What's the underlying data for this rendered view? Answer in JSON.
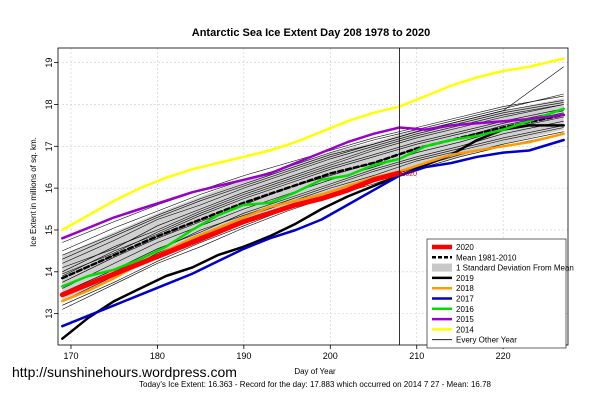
{
  "chart_data": {
    "type": "line",
    "title": "Antarctic Sea Ice Extent Day 208 1978 to 2020",
    "xlabel": "Day of Year",
    "ylabel": "Ice Extent in millions of sq. km.",
    "xlim": [
      168.5,
      227.5
    ],
    "ylim": [
      12.25,
      19.35
    ],
    "xticks": [
      170,
      180,
      190,
      200,
      210,
      220
    ],
    "yticks": [
      13,
      14,
      15,
      16,
      17,
      18,
      19
    ],
    "grid": true,
    "current_day": 208,
    "current_day_value": 16.363,
    "legend_position": "bottom-right",
    "legend": [
      {
        "label": "2020",
        "color": "#ff0000",
        "style": "thick"
      },
      {
        "label": "Mean 1981-2010",
        "color": "#000000",
        "style": "dashed"
      },
      {
        "label": "1 Standard Deviation From Mean",
        "color": "#c8c8c8",
        "style": "band"
      },
      {
        "label": "2019",
        "color": "#000000",
        "style": "solid"
      },
      {
        "label": "2018",
        "color": "#ff9900",
        "style": "solid"
      },
      {
        "label": "2017",
        "color": "#0000cc",
        "style": "solid"
      },
      {
        "label": "2016",
        "color": "#00dd00",
        "style": "solid"
      },
      {
        "label": "2015",
        "color": "#9900cc",
        "style": "solid"
      },
      {
        "label": "2014",
        "color": "#ffff00",
        "style": "solid"
      },
      {
        "label": "Every Other Year",
        "color": "#000000",
        "style": "thin"
      }
    ],
    "std_band": {
      "x": [
        169,
        175,
        180,
        185,
        190,
        195,
        200,
        205,
        210,
        215,
        220,
        227
      ],
      "upper": [
        14.4,
        14.95,
        15.4,
        15.8,
        16.2,
        16.5,
        16.85,
        17.1,
        17.4,
        17.6,
        17.85,
        18.15
      ],
      "lower": [
        13.3,
        13.85,
        14.3,
        14.7,
        15.15,
        15.5,
        15.85,
        16.15,
        16.5,
        16.75,
        17.05,
        17.4
      ]
    },
    "series": [
      {
        "name": "2020",
        "color": "#ff0000",
        "width": 5,
        "dash": "",
        "x": [
          169,
          172,
          175,
          178,
          181,
          184,
          187,
          190,
          193,
          196,
          199,
          202,
          205,
          208
        ],
        "y": [
          13.45,
          13.7,
          13.95,
          14.2,
          14.45,
          14.7,
          14.95,
          15.2,
          15.4,
          15.6,
          15.75,
          15.95,
          16.2,
          16.36
        ]
      },
      {
        "name": "Mean 1981-2010",
        "color": "#000000",
        "width": 2.5,
        "dash": "5,3",
        "x": [
          169,
          175,
          180,
          185,
          190,
          195,
          200,
          205,
          210,
          215,
          220,
          227
        ],
        "y": [
          13.85,
          14.4,
          14.85,
          15.25,
          15.65,
          16.0,
          16.35,
          16.6,
          16.95,
          17.2,
          17.45,
          17.75
        ]
      },
      {
        "name": "2019",
        "color": "#000000",
        "width": 2.5,
        "dash": "",
        "x": [
          169,
          172,
          175,
          178,
          181,
          184,
          187,
          190,
          193,
          196,
          199,
          202,
          205,
          208,
          211,
          214,
          217,
          220,
          223,
          227
        ],
        "y": [
          12.4,
          12.9,
          13.3,
          13.6,
          13.9,
          14.1,
          14.4,
          14.6,
          14.85,
          15.15,
          15.5,
          15.8,
          16.05,
          16.3,
          16.55,
          16.8,
          17.15,
          17.4,
          17.5,
          17.5
        ]
      },
      {
        "name": "2018",
        "color": "#ff9900",
        "width": 2.5,
        "dash": "",
        "x": [
          169,
          172,
          175,
          178,
          181,
          184,
          187,
          190,
          193,
          196,
          199,
          202,
          205,
          208,
          211,
          214,
          217,
          220,
          223,
          227
        ],
        "y": [
          13.3,
          13.55,
          13.85,
          14.2,
          14.5,
          14.8,
          15.05,
          15.3,
          15.55,
          15.7,
          15.85,
          16.05,
          16.25,
          16.4,
          16.6,
          16.8,
          16.9,
          17.0,
          17.1,
          17.3
        ]
      },
      {
        "name": "2017",
        "color": "#0000cc",
        "width": 2.5,
        "dash": "",
        "x": [
          169,
          172,
          175,
          178,
          181,
          184,
          187,
          190,
          193,
          196,
          199,
          202,
          205,
          208,
          211,
          214,
          217,
          220,
          223,
          227
        ],
        "y": [
          12.7,
          12.95,
          13.2,
          13.45,
          13.7,
          13.95,
          14.25,
          14.55,
          14.8,
          15.0,
          15.25,
          15.6,
          15.95,
          16.3,
          16.5,
          16.6,
          16.75,
          16.85,
          16.9,
          17.15
        ]
      },
      {
        "name": "2016",
        "color": "#00dd00",
        "width": 2.5,
        "dash": "",
        "x": [
          169,
          172,
          175,
          178,
          181,
          184,
          187,
          190,
          193,
          196,
          199,
          202,
          205,
          208,
          211,
          214,
          217,
          220,
          223,
          227
        ],
        "y": [
          13.65,
          13.9,
          14.05,
          14.3,
          14.6,
          15.0,
          15.35,
          15.6,
          15.65,
          15.9,
          16.2,
          16.3,
          16.55,
          16.7,
          17.0,
          17.15,
          17.25,
          17.4,
          17.6,
          17.9
        ]
      },
      {
        "name": "2015",
        "color": "#9900cc",
        "width": 2.5,
        "dash": "",
        "x": [
          169,
          172,
          175,
          178,
          181,
          184,
          187,
          190,
          193,
          196,
          199,
          202,
          205,
          208,
          211,
          214,
          217,
          220,
          223,
          227
        ],
        "y": [
          14.8,
          15.05,
          15.3,
          15.5,
          15.7,
          15.9,
          16.05,
          16.2,
          16.35,
          16.6,
          16.85,
          17.1,
          17.3,
          17.45,
          17.4,
          17.5,
          17.55,
          17.6,
          17.65,
          17.75
        ]
      },
      {
        "name": "2014",
        "color": "#ffff00",
        "width": 2.5,
        "dash": "",
        "x": [
          169,
          172,
          175,
          178,
          181,
          184,
          187,
          190,
          193,
          196,
          199,
          202,
          205,
          208,
          211,
          214,
          217,
          220,
          223,
          227
        ],
        "y": [
          15.0,
          15.35,
          15.7,
          16.0,
          16.25,
          16.45,
          16.6,
          16.75,
          16.9,
          17.1,
          17.35,
          17.6,
          17.8,
          17.95,
          18.2,
          18.45,
          18.65,
          18.8,
          18.9,
          19.1
        ]
      }
    ],
    "other_years": [
      {
        "x": [
          169,
          175,
          180,
          185,
          190,
          195,
          200,
          205,
          210,
          215,
          220,
          227
        ],
        "y": [
          14.7,
          15.2,
          15.6,
          15.95,
          16.3,
          16.6,
          16.9,
          17.2,
          17.45,
          17.7,
          17.95,
          18.2
        ]
      },
      {
        "x": [
          169,
          175,
          180,
          185,
          190,
          195,
          200,
          205,
          210,
          215,
          220,
          227
        ],
        "y": [
          14.2,
          14.75,
          15.25,
          15.6,
          16.0,
          16.35,
          16.7,
          17.0,
          17.3,
          17.55,
          17.8,
          18.05
        ]
      },
      {
        "x": [
          169,
          175,
          180,
          185,
          190,
          195,
          200,
          205,
          210,
          215,
          220,
          227
        ],
        "y": [
          13.9,
          14.5,
          14.9,
          15.35,
          15.75,
          16.1,
          16.45,
          16.75,
          17.05,
          17.3,
          17.55,
          17.85
        ]
      },
      {
        "x": [
          169,
          175,
          180,
          185,
          190,
          195,
          200,
          205,
          210,
          215,
          220,
          227
        ],
        "y": [
          13.6,
          14.2,
          14.7,
          15.1,
          15.5,
          15.85,
          16.2,
          16.5,
          16.85,
          17.1,
          17.4,
          17.7
        ]
      },
      {
        "x": [
          169,
          175,
          180,
          185,
          190,
          195,
          200,
          205,
          210,
          215,
          220,
          227
        ],
        "y": [
          13.3,
          13.9,
          14.45,
          14.85,
          15.3,
          15.65,
          16.0,
          16.3,
          16.65,
          16.9,
          17.15,
          17.45
        ]
      },
      {
        "x": [
          169,
          175,
          180,
          185,
          190,
          195,
          200,
          205,
          210,
          215,
          220,
          227
        ],
        "y": [
          14.0,
          14.6,
          15.0,
          15.45,
          15.85,
          16.2,
          16.55,
          16.9,
          17.2,
          17.45,
          17.7,
          18.0
        ]
      },
      {
        "x": [
          169,
          175,
          180,
          185,
          190,
          195,
          200,
          205,
          210,
          215,
          220,
          227
        ],
        "y": [
          13.5,
          14.05,
          14.55,
          14.95,
          15.4,
          15.75,
          16.1,
          16.45,
          16.75,
          17.0,
          17.3,
          17.6
        ]
      },
      {
        "x": [
          169,
          175,
          180,
          185,
          190,
          195,
          200,
          205,
          210,
          215,
          220,
          227
        ],
        "y": [
          14.4,
          14.9,
          15.35,
          15.75,
          16.1,
          16.45,
          16.8,
          17.05,
          17.35,
          17.6,
          17.85,
          18.1
        ]
      },
      {
        "x": [
          169,
          175,
          180,
          185,
          190,
          195,
          200,
          205,
          210,
          215,
          220,
          227
        ],
        "y": [
          13.2,
          13.75,
          14.25,
          14.7,
          15.1,
          15.5,
          15.85,
          16.15,
          16.5,
          16.8,
          17.05,
          17.35
        ]
      },
      {
        "x": [
          169,
          175,
          180,
          185,
          190,
          195,
          200,
          205,
          210,
          215,
          220,
          227
        ],
        "y": [
          14.1,
          14.55,
          15.1,
          15.5,
          15.9,
          16.25,
          16.6,
          16.95,
          17.25,
          17.5,
          17.75,
          18.0
        ]
      },
      {
        "x": [
          169,
          175,
          180,
          185,
          190,
          195,
          200,
          205,
          210,
          215,
          220,
          227
        ],
        "y": [
          13.75,
          14.35,
          14.8,
          15.2,
          15.6,
          16.0,
          16.3,
          16.6,
          16.95,
          17.2,
          17.5,
          17.8
        ]
      },
      {
        "x": [
          169,
          175,
          180,
          185,
          190,
          195,
          200,
          205,
          210,
          215,
          220,
          227
        ],
        "y": [
          13.4,
          14.0,
          14.5,
          15.0,
          15.35,
          15.7,
          16.05,
          16.4,
          16.7,
          16.95,
          17.2,
          17.5
        ]
      },
      {
        "x": [
          169,
          175,
          180,
          185,
          190,
          195,
          200,
          205,
          210,
          215,
          220,
          227
        ],
        "y": [
          14.5,
          15.05,
          15.45,
          15.85,
          16.2,
          16.5,
          16.85,
          17.15,
          17.4,
          17.65,
          17.9,
          18.25
        ]
      },
      {
        "x": [
          169,
          175,
          180,
          185,
          190,
          195,
          200,
          205,
          210,
          215,
          220,
          227
        ],
        "y": [
          13.95,
          14.45,
          14.95,
          15.4,
          15.8,
          16.15,
          16.5,
          16.8,
          17.1,
          17.35,
          17.6,
          17.9
        ]
      },
      {
        "x": [
          169,
          175,
          180,
          185,
          190,
          195,
          200,
          205,
          210,
          215,
          220,
          227
        ],
        "y": [
          13.1,
          13.7,
          14.2,
          14.6,
          15.05,
          15.45,
          15.8,
          16.1,
          16.45,
          16.75,
          17.0,
          17.3
        ]
      },
      {
        "x": [
          169,
          175,
          180,
          185,
          190,
          195,
          200,
          205,
          210,
          215,
          220,
          227
        ],
        "y": [
          14.3,
          14.85,
          15.3,
          15.7,
          16.05,
          16.4,
          16.75,
          17.05,
          17.35,
          17.6,
          17.85,
          18.9
        ]
      }
    ]
  },
  "watermark": "http://sunshinehours.wordpress.com",
  "footer": "Today's Ice Extent: 16.363  - Record for the day: 17.883 which occurred on 2014 7 27  - Mean: 16.78",
  "current_value_label": "2020"
}
